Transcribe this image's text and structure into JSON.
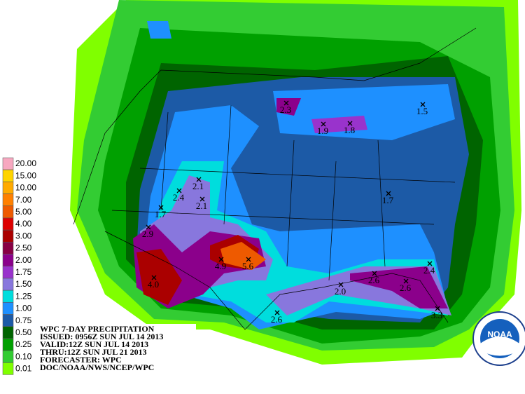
{
  "header": {
    "lines": [
      "WPC 7-DAY PRECIPITATION",
      "ISSUED: 0956Z SUN JUL 14 2013",
      "VALID:12Z SUN JUL 14 2013",
      "THRU:12Z SUN JUL 21 2013",
      "FORECASTER: WPC",
      "DOC/NOAA/NWS/NCEP/WPC"
    ]
  },
  "legend": {
    "items": [
      {
        "label": "20.00",
        "color": "#f7a8c0"
      },
      {
        "label": "15.00",
        "color": "#ffd400"
      },
      {
        "label": "10.00",
        "color": "#ffaa00"
      },
      {
        "label": "7.00",
        "color": "#ff8000"
      },
      {
        "label": "5.00",
        "color": "#ee5a00"
      },
      {
        "label": "4.00",
        "color": "#dd0000"
      },
      {
        "label": "3.00",
        "color": "#aa0000"
      },
      {
        "label": "2.50",
        "color": "#880044"
      },
      {
        "label": "2.00",
        "color": "#8b008b"
      },
      {
        "label": "1.75",
        "color": "#9933cc"
      },
      {
        "label": "1.50",
        "color": "#8877dd"
      },
      {
        "label": "1.25",
        "color": "#00dddd"
      },
      {
        "label": "1.00",
        "color": "#1e90ff"
      },
      {
        "label": "0.75",
        "color": "#1c5aa6"
      },
      {
        "label": "0.50",
        "color": "#006400"
      },
      {
        "label": "0.25",
        "color": "#00a000"
      },
      {
        "label": "0.10",
        "color": "#33cc33"
      },
      {
        "label": "0.01",
        "color": "#80ff00"
      }
    ]
  },
  "maxima": [
    "2.3",
    "1.9",
    "1.8",
    "1.5",
    "2.1",
    "2.4",
    "2.1",
    "1.7",
    "2.9",
    "4.0",
    "4.9",
    "5.6",
    "1.7",
    "2.0",
    "2.6",
    "2.4",
    "2.6",
    "3.3",
    "2.6"
  ],
  "logo": "NOAA"
}
